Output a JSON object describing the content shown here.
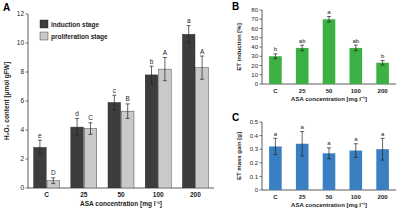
{
  "chart_data": [
    {
      "type": "bar",
      "title": "A",
      "x_label": "ASA concentration [mg l⁻¹]",
      "y_label": "H₂O₂ content [µmol gFW]",
      "categories": [
        "C",
        "25",
        "50",
        "100",
        "200"
      ],
      "series": [
        {
          "name": "induction stage",
          "color": "#3d3d3d",
          "values": [
            2.8,
            4.2,
            5.9,
            7.8,
            10.6
          ],
          "errors": [
            0.5,
            0.6,
            0.5,
            0.6,
            0.6
          ],
          "annotations": [
            "e",
            "d",
            "c",
            "b",
            "a"
          ]
        },
        {
          "name": "proliferation stage",
          "color": "#c9c9c9",
          "values": [
            0.5,
            4.1,
            5.3,
            8.2,
            8.3
          ],
          "errors": [
            0.2,
            0.4,
            0.5,
            0.8,
            0.8
          ],
          "annotations": [
            "D",
            "C",
            "B",
            "A",
            "A"
          ]
        }
      ],
      "ylim": [
        0,
        12
      ],
      "yticks": [
        0,
        2,
        4,
        6,
        8,
        10,
        12
      ],
      "legend": "top-left"
    },
    {
      "type": "bar",
      "title": "B",
      "x_label": "ASA concentration [mg l⁻¹]",
      "y_label": "ET induction [%]",
      "categories": [
        "C",
        "25",
        "50",
        "100",
        "200"
      ],
      "series": [
        {
          "color": "#3cb043",
          "values": [
            30,
            39,
            70,
            39,
            23
          ],
          "errors": [
            2.5,
            3,
            3,
            3,
            2.5
          ],
          "annotations": [
            "b",
            "ab",
            "a",
            "ab",
            "b"
          ]
        }
      ],
      "ylim": [
        0,
        80
      ],
      "yticks": [
        0,
        10,
        20,
        30,
        40,
        50,
        60,
        70,
        80
      ]
    },
    {
      "type": "bar",
      "title": "C",
      "x_label": "ASA concentration [mg l⁻¹]",
      "y_label": "ET mass gain [g]",
      "categories": [
        "C",
        "25",
        "50",
        "100",
        "200"
      ],
      "series": [
        {
          "color": "#3a7fc1",
          "values": [
            0.32,
            0.34,
            0.27,
            0.29,
            0.3
          ],
          "errors": [
            0.06,
            0.09,
            0.04,
            0.05,
            0.08
          ],
          "annotations": [
            "a",
            "a",
            "a",
            "a",
            "a"
          ]
        }
      ],
      "ylim": [
        0,
        0.5
      ],
      "yticks": [
        0,
        0.1,
        0.2,
        0.3,
        0.4,
        0.5
      ]
    }
  ]
}
